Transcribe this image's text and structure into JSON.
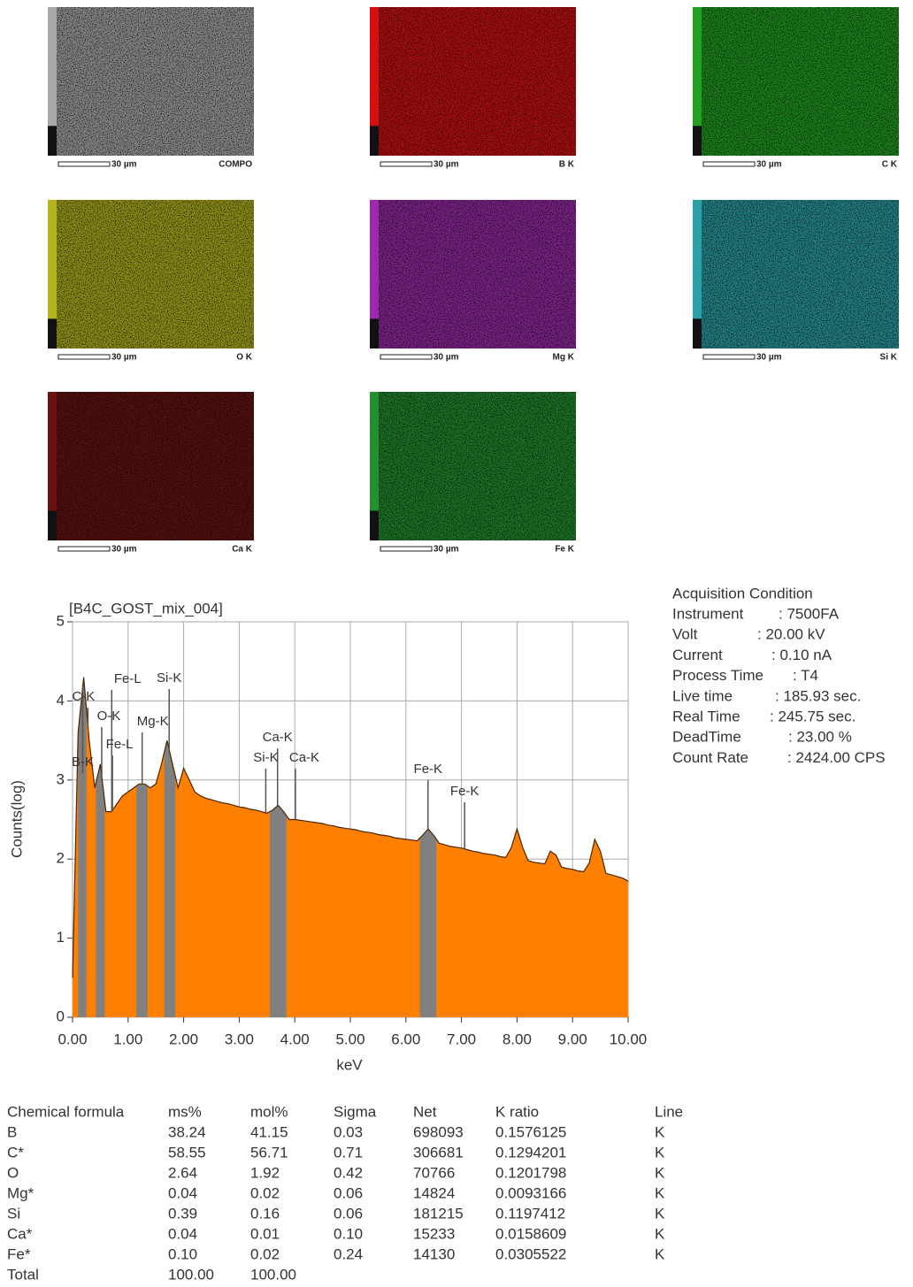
{
  "maps": [
    {
      "label": "COMPO",
      "scale": "30 µm",
      "color": "#a9a9a9"
    },
    {
      "label": "B K",
      "scale": "30 µm",
      "color": "#d41010"
    },
    {
      "label": "C K",
      "scale": "30 µm",
      "color": "#22a022"
    },
    {
      "label": "O K",
      "scale": "30 µm",
      "color": "#b4b41e"
    },
    {
      "label": "Mg K",
      "scale": "30 µm",
      "color": "#9a2aaa"
    },
    {
      "label": "Si K",
      "scale": "30 µm",
      "color": "#2aa0a6"
    },
    {
      "label": "Ca K",
      "scale": "30 µm",
      "color": "#6a1212"
    },
    {
      "label": "Fe K",
      "scale": "30 µm",
      "color": "#22902e"
    }
  ],
  "chart_data": {
    "type": "area",
    "title": "[B4C_GOST_mix_004]",
    "x_label": "keV",
    "y_label": "Counts(log)",
    "color": "#ff8000",
    "line_color": "#4a2400",
    "region_color": "#808080",
    "xlim": [
      0,
      10
    ],
    "ylim": [
      0,
      5
    ],
    "xticks": [
      {
        "value": 0,
        "label": "0.00"
      },
      {
        "value": 1,
        "label": "1.00"
      },
      {
        "value": 2,
        "label": "2.00"
      },
      {
        "value": 3,
        "label": "3.00"
      },
      {
        "value": 4,
        "label": "4.00"
      },
      {
        "value": 5,
        "label": "5.00"
      },
      {
        "value": 6,
        "label": "6.00"
      },
      {
        "value": 7,
        "label": "7.00"
      },
      {
        "value": 8,
        "label": "8.00"
      },
      {
        "value": 9,
        "label": "9.00"
      },
      {
        "value": 10,
        "label": "10.00"
      }
    ],
    "yticks": [
      0,
      1,
      2,
      3,
      4,
      5
    ],
    "grid": true,
    "x": [
      0.0,
      0.1,
      0.2,
      0.3,
      0.4,
      0.5,
      0.6,
      0.7,
      0.8,
      0.9,
      1.0,
      1.1,
      1.2,
      1.3,
      1.4,
      1.5,
      1.6,
      1.7,
      1.8,
      1.9,
      2.0,
      2.1,
      2.2,
      2.3,
      2.4,
      2.5,
      2.6,
      2.7,
      2.8,
      2.9,
      3.0,
      3.1,
      3.2,
      3.3,
      3.4,
      3.5,
      3.6,
      3.7,
      3.8,
      3.9,
      4.0,
      4.1,
      4.2,
      4.3,
      4.4,
      4.5,
      4.6,
      4.7,
      4.8,
      4.9,
      5.0,
      5.1,
      5.2,
      5.3,
      5.4,
      5.5,
      5.6,
      5.7,
      5.8,
      5.9,
      6.0,
      6.1,
      6.2,
      6.3,
      6.4,
      6.5,
      6.6,
      6.7,
      6.8,
      6.9,
      7.0,
      7.1,
      7.2,
      7.3,
      7.4,
      7.5,
      7.6,
      7.7,
      7.8,
      7.9,
      8.0,
      8.1,
      8.2,
      8.3,
      8.4,
      8.5,
      8.6,
      8.7,
      8.8,
      8.9,
      9.0,
      9.1,
      9.2,
      9.3,
      9.4,
      9.5,
      9.6,
      9.7,
      9.8,
      9.9,
      10.0
    ],
    "values": [
      0.5,
      3.6,
      4.3,
      3.5,
      2.9,
      3.2,
      2.6,
      2.6,
      2.7,
      2.8,
      2.85,
      2.9,
      2.95,
      2.95,
      2.9,
      2.95,
      3.2,
      3.5,
      3.2,
      2.9,
      3.15,
      3.0,
      2.85,
      2.8,
      2.77,
      2.75,
      2.73,
      2.71,
      2.7,
      2.68,
      2.66,
      2.65,
      2.63,
      2.62,
      2.6,
      2.58,
      2.62,
      2.68,
      2.6,
      2.5,
      2.5,
      2.49,
      2.48,
      2.47,
      2.46,
      2.45,
      2.43,
      2.42,
      2.4,
      2.39,
      2.38,
      2.37,
      2.35,
      2.34,
      2.33,
      2.31,
      2.3,
      2.29,
      2.27,
      2.26,
      2.25,
      2.24,
      2.23,
      2.3,
      2.38,
      2.3,
      2.2,
      2.18,
      2.16,
      2.15,
      2.14,
      2.12,
      2.1,
      2.09,
      2.07,
      2.06,
      2.05,
      2.03,
      2.02,
      2.15,
      2.38,
      2.15,
      1.98,
      1.96,
      1.95,
      1.94,
      2.1,
      2.05,
      1.9,
      1.88,
      1.87,
      1.85,
      1.84,
      1.95,
      2.25,
      2.1,
      1.82,
      1.8,
      1.78,
      1.76,
      1.72
    ],
    "regions": [
      [
        0.1,
        0.25
      ],
      [
        0.42,
        0.58
      ],
      [
        1.15,
        1.35
      ],
      [
        1.65,
        1.85
      ],
      [
        3.55,
        3.85
      ],
      [
        6.25,
        6.55
      ]
    ],
    "peaks": [
      {
        "label": "Fe-L",
        "x": 0.705
      },
      {
        "label": "C-K",
        "x": 0.277
      },
      {
        "label": "O-K",
        "x": 0.525
      },
      {
        "label": "Fe-L",
        "x": 0.718
      },
      {
        "label": "B-K",
        "x": 0.183
      },
      {
        "label": "Mg-K",
        "x": 1.253
      },
      {
        "label": "Si-K",
        "x": 1.739
      },
      {
        "label": "Ca-K",
        "x": 3.69
      },
      {
        "label": "Si-K",
        "x": 3.478
      },
      {
        "label": "Ca-K",
        "x": 4.012
      },
      {
        "label": "Fe-K",
        "x": 6.398
      },
      {
        "label": "Fe-K",
        "x": 7.057
      }
    ]
  },
  "acquisition": {
    "title": "Acquisition Condition",
    "rows": [
      [
        "Instrument",
        ": 7500FA"
      ],
      [
        "Volt",
        ": 20.00 kV"
      ],
      [
        "Current",
        ": 0.10 nA"
      ],
      [
        "Process Time",
        ": T4"
      ],
      [
        "Live time",
        ": 185.93 sec."
      ],
      [
        "Real Time",
        ": 245.75 sec."
      ],
      [
        "DeadTime",
        ": 23.00 %"
      ],
      [
        "Count Rate",
        ": 2424.00 CPS"
      ]
    ]
  },
  "table": {
    "header": [
      "Chemical formula",
      "ms%",
      "mol%",
      "Sigma",
      "Net",
      "K ratio",
      "Line"
    ],
    "rows": [
      [
        "B",
        "38.24",
        "41.15",
        "0.03",
        "698093",
        "0.1576125",
        "K"
      ],
      [
        "C*",
        "58.55",
        "56.71",
        "0.71",
        "306681",
        "0.1294201",
        "K"
      ],
      [
        "O",
        "2.64",
        "1.92",
        "0.42",
        "70766",
        "0.1201798",
        "K"
      ],
      [
        "Mg*",
        "0.04",
        "0.02",
        "0.06",
        "14824",
        "0.0093166",
        "K"
      ],
      [
        "Si",
        "0.39",
        "0.16",
        "0.06",
        "181215",
        "0.1197412",
        "K"
      ],
      [
        "Ca*",
        "0.04",
        "0.01",
        "0.10",
        "15233",
        "0.0158609",
        "K"
      ],
      [
        "Fe*",
        "0.10",
        "0.02",
        "0.24",
        "14130",
        "0.0305522",
        "K"
      ],
      [
        "Total",
        "100.00",
        "100.00",
        "",
        "",
        "",
        ""
      ]
    ]
  }
}
